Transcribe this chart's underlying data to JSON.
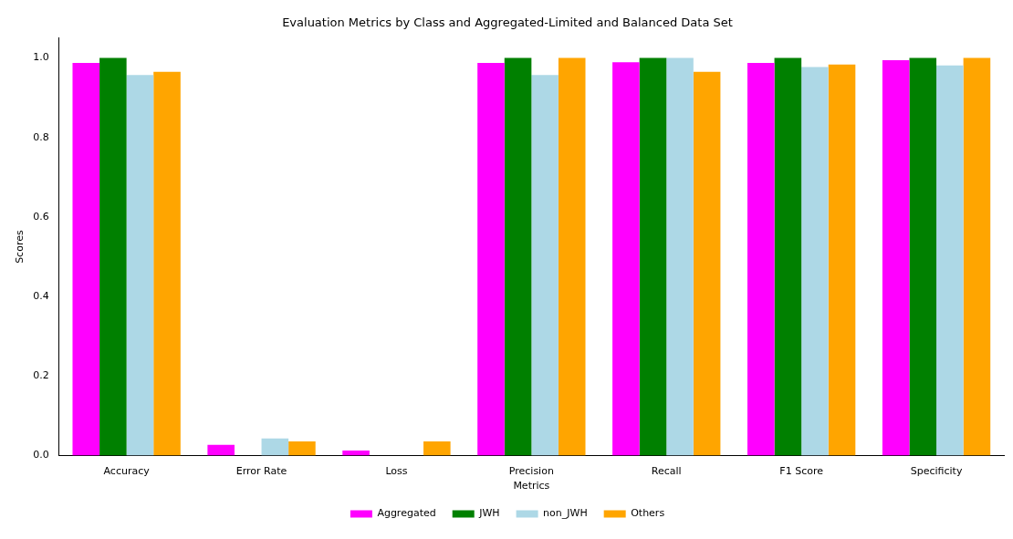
{
  "chart_data": {
    "type": "bar",
    "title": "Evaluation Metrics by Class and Aggregated-Limited and Balanced Data Set",
    "xlabel": "Metrics",
    "ylabel": "Scores",
    "categories": [
      "Accuracy",
      "Error Rate",
      "Loss",
      "Precision",
      "Recall",
      "F1 Score",
      "Specificity"
    ],
    "series": [
      {
        "name": "Aggregated",
        "color": "#ff00ff",
        "values": [
          0.987,
          0.027,
          0.013,
          0.987,
          0.989,
          0.987,
          0.994
        ]
      },
      {
        "name": "JWH",
        "color": "#008000",
        "values": [
          1.0,
          0,
          0,
          1.0,
          1.0,
          1.0,
          1.0
        ]
      },
      {
        "name": "non_JWH",
        "color": "#add8e6",
        "values": [
          0.957,
          0.043,
          0,
          0.957,
          1.0,
          0.977,
          0.981
        ]
      },
      {
        "name": "Others",
        "color": "#ffa500",
        "values": [
          0.965,
          0.036,
          0.036,
          1.0,
          0.965,
          0.983,
          1.0
        ]
      }
    ],
    "ylim": [
      0,
      1.05
    ],
    "yticks": [
      {
        "value": 0,
        "label": "0.0"
      },
      0.2,
      0.4,
      0.6,
      0.8,
      {
        "value": 1,
        "label": "1.0"
      }
    ],
    "grid": false,
    "legend": "bottom"
  }
}
